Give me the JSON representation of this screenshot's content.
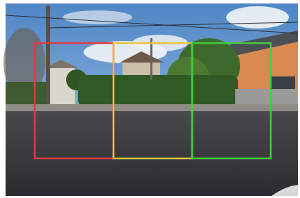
{
  "boxes": [
    {
      "color": "#e23a3f"
    },
    {
      "color": "#e8c23c"
    },
    {
      "color": "#3fcd3c"
    }
  ]
}
